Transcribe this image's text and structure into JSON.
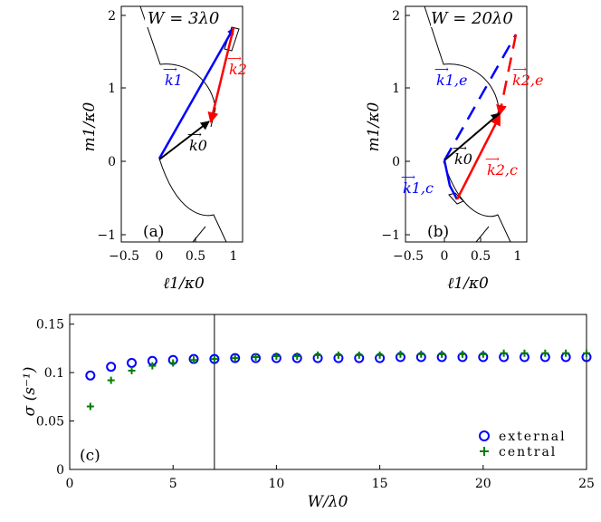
{
  "colors": {
    "blue": "#0000ff",
    "red": "#ff0000",
    "black": "#000000",
    "green": "#007f00"
  },
  "chart_data": [
    {
      "type": "line",
      "panel": "(a)",
      "title": "W = 3λ0",
      "xlabel": "ℓ1/κ0",
      "ylabel": "m1/κ0",
      "xlim": [
        -0.5,
        1.05
      ],
      "ylim": [
        -1.05,
        2.1
      ],
      "xticks": [
        "−0.5",
        "0",
        "0.5",
        "1"
      ],
      "yticks": [
        "−1",
        "0",
        "1",
        "2"
      ],
      "labels": {
        "k1": "k1",
        "k2": "k2",
        "k0": "k0"
      },
      "vectors": [
        {
          "name": "k1",
          "color": "blue",
          "style": "solid",
          "from": [
            0,
            0
          ],
          "to": [
            1.05,
            1.8
          ]
        },
        {
          "name": "k2",
          "color": "red",
          "style": "solid",
          "from": [
            1.05,
            1.8
          ],
          "to": [
            0.72,
            0.55
          ]
        },
        {
          "name": "k0",
          "color": "black",
          "style": "solid",
          "from": [
            0,
            0
          ],
          "to": [
            0.72,
            0.55
          ]
        }
      ]
    },
    {
      "type": "line",
      "panel": "(b)",
      "title": "W = 20λ0",
      "xlabel": "ℓ1/κ0",
      "ylabel": "m1/κ0",
      "xlim": [
        -0.5,
        1.05
      ],
      "ylim": [
        -1.05,
        2.1
      ],
      "xticks": [
        "−0.5",
        "0",
        "0.5",
        "1"
      ],
      "yticks": [
        "−1",
        "0",
        "1",
        "2"
      ],
      "labels": {
        "k1e": "k1,e",
        "k2e": "k2,e",
        "k0": "k0",
        "k1c": "k1,c",
        "k2c": "k2,c"
      },
      "vectors": [
        {
          "name": "k1,e",
          "color": "blue",
          "style": "dashed",
          "from": [
            0,
            0
          ],
          "to": [
            1.0,
            1.7
          ]
        },
        {
          "name": "k2,e",
          "color": "red",
          "style": "dashed",
          "from": [
            1.0,
            1.7
          ],
          "to": [
            0.8,
            0.62
          ]
        },
        {
          "name": "k0",
          "color": "black",
          "style": "solid",
          "from": [
            0,
            0
          ],
          "to": [
            0.8,
            0.62
          ]
        },
        {
          "name": "k1,c",
          "color": "blue",
          "style": "solid",
          "from": [
            0,
            0
          ],
          "to": [
            0.18,
            -0.52
          ]
        },
        {
          "name": "k2,c",
          "color": "red",
          "style": "solid",
          "from": [
            0.18,
            -0.52
          ],
          "to": [
            0.8,
            0.62
          ]
        }
      ]
    },
    {
      "type": "scatter",
      "panel": "(c)",
      "xlabel": "W/λ0",
      "ylabel": "σ (s⁻¹)",
      "xlim": [
        0,
        25
      ],
      "ylim": [
        0,
        0.16
      ],
      "xticks": [
        "0",
        "5",
        "10",
        "15",
        "20",
        "25"
      ],
      "yticks": [
        "0",
        "0.05",
        "0.1",
        "0.15"
      ],
      "vline_x": 7,
      "legend": [
        "external",
        "central"
      ],
      "legend_position": "bottom-right",
      "x": [
        1,
        2,
        3,
        4,
        5,
        6,
        7,
        8,
        9,
        10,
        11,
        12,
        13,
        14,
        15,
        16,
        17,
        18,
        19,
        20,
        21,
        22,
        23,
        24,
        25
      ],
      "series": [
        {
          "name": "external",
          "marker": "circle",
          "color": "blue",
          "values": [
            0.097,
            0.106,
            0.11,
            0.112,
            0.113,
            0.114,
            0.114,
            0.115,
            0.115,
            0.115,
            0.115,
            0.115,
            0.115,
            0.115,
            0.115,
            0.116,
            0.116,
            0.116,
            0.116,
            0.116,
            0.116,
            0.116,
            0.116,
            0.116,
            0.116
          ]
        },
        {
          "name": "central",
          "marker": "plus",
          "color": "green",
          "values": [
            0.065,
            0.092,
            0.102,
            0.107,
            0.11,
            0.113,
            0.114,
            0.115,
            0.116,
            0.117,
            0.117,
            0.118,
            0.118,
            0.118,
            0.118,
            0.119,
            0.119,
            0.119,
            0.119,
            0.119,
            0.12,
            0.12,
            0.12,
            0.12,
            0.12
          ]
        }
      ]
    }
  ]
}
